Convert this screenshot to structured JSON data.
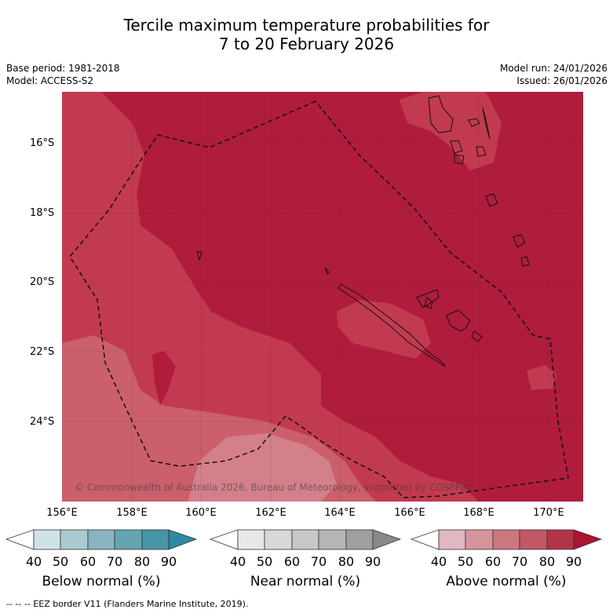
{
  "title_line1": "Tercile maximum temperature probabilities for",
  "title_line2": "7 to 20 February 2026",
  "base_period": "Base period: 1981-2018",
  "model": "Model: ACCESS-S2",
  "model_run": "Model run: 24/01/2026",
  "issued": "Issued: 26/01/2026",
  "lat_labels": [
    "16°S",
    "18°S",
    "20°S",
    "22°S",
    "24°S"
  ],
  "lon_labels": [
    "156°E",
    "158°E",
    "160°E",
    "162°E",
    "164°E",
    "166°E",
    "168°E",
    "170°E"
  ],
  "copyright": "© Commonwealth of Australia 2026, Bureau of Meteorology, supported by COSPPac",
  "colorbars": [
    {
      "title": "Below normal (%)",
      "ticks": [
        "40",
        "50",
        "60",
        "70",
        "80",
        "90"
      ],
      "colors": [
        "#cde3e8",
        "#a9cad1",
        "#88b5c0",
        "#66a3b0",
        "#4795a6",
        "#2e8aa0"
      ]
    },
    {
      "title": "Near normal (%)",
      "ticks": [
        "40",
        "50",
        "60",
        "70",
        "80",
        "90"
      ],
      "colors": [
        "#e8e8e8",
        "#d8d8d8",
        "#c8c8c8",
        "#b6b6b6",
        "#a0a0a0",
        "#888888"
      ]
    },
    {
      "title": "Above normal (%)",
      "ticks": [
        "40",
        "50",
        "60",
        "70",
        "80",
        "90"
      ],
      "colors": [
        "#e0b8bf",
        "#d6939c",
        "#cc7780",
        "#c05866",
        "#b23448",
        "#ab1533"
      ]
    }
  ],
  "legend_note": "--  --  -- EEZ border V11 (Flanders Marine Institute, 2019).",
  "colors": {
    "above_80": "#b01c3c",
    "above_70": "#c23a50",
    "above_60": "#cb5f6c",
    "above_50": "#d3808a"
  }
}
